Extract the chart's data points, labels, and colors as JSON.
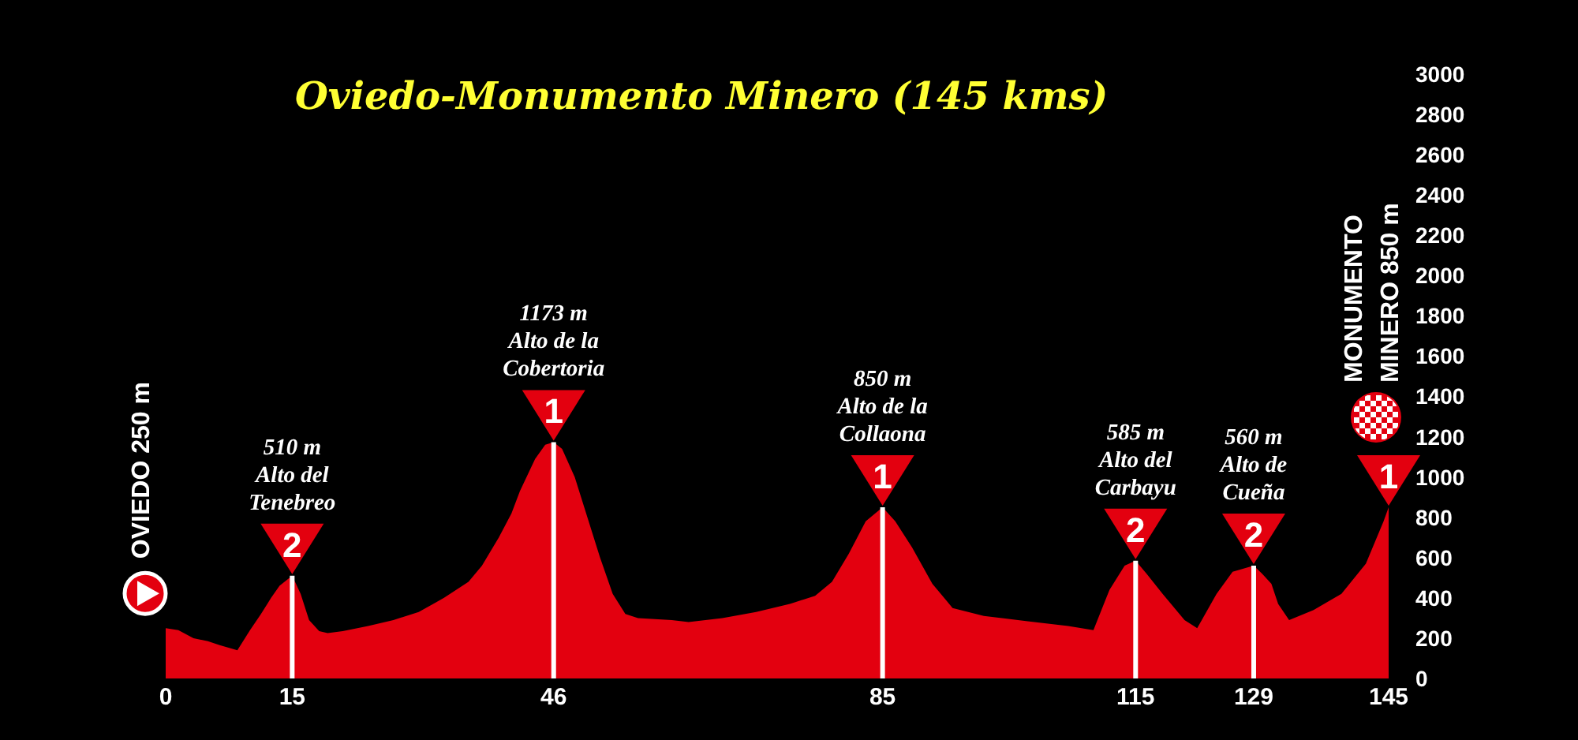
{
  "chart_data": {
    "type": "area",
    "title": "Oviedo-Monumento Minero (145 kms)",
    "x": [
      0,
      1.5,
      3.3,
      5,
      6.4,
      8.5,
      10,
      11.3,
      12.5,
      13.5,
      15,
      16,
      17,
      18.2,
      19.2,
      21,
      24,
      27,
      30,
      33,
      35.9,
      37.5,
      39.5,
      41,
      42,
      43.8,
      45,
      46,
      47,
      48.5,
      50,
      51.5,
      53,
      54.5,
      56,
      60,
      62,
      66,
      70,
      74,
      77,
      79,
      81,
      83,
      85,
      86.5,
      88.5,
      90.9,
      93.3,
      97,
      102,
      107,
      110,
      111.9,
      113.7,
      115,
      116.3,
      118.2,
      120.8,
      122.3,
      124.6,
      126.5,
      129,
      130,
      131.1,
      131.9,
      133.2,
      136.1,
      139.4,
      142.3,
      144.4,
      145
    ],
    "values": [
      250,
      240,
      200,
      185,
      165,
      140,
      240,
      320,
      400,
      460,
      510,
      420,
      290,
      235,
      225,
      235,
      260,
      290,
      330,
      400,
      480,
      560,
      700,
      820,
      930,
      1090,
      1160,
      1173,
      1140,
      1000,
      800,
      600,
      420,
      320,
      300,
      290,
      280,
      300,
      330,
      370,
      410,
      480,
      620,
      780,
      850,
      780,
      650,
      470,
      350,
      310,
      285,
      260,
      240,
      440,
      560,
      585,
      520,
      420,
      290,
      250,
      420,
      530,
      560,
      520,
      470,
      370,
      290,
      340,
      420,
      570,
      780,
      850
    ],
    "color": "#e3000f",
    "xlim": [
      0,
      145
    ],
    "xticks": [
      0,
      15,
      46,
      85,
      115,
      129,
      145
    ],
    "ylim": [
      0,
      3000
    ],
    "yticks": [
      0,
      200,
      400,
      600,
      800,
      1000,
      1200,
      1400,
      1600,
      1800,
      2000,
      2200,
      2400,
      2600,
      2800,
      3000
    ],
    "annotations": [
      "OVIEDO 250 m",
      {
        "text": "510 m\nAlto del\nTenebreo",
        "x": 15,
        "y": 510
      },
      {
        "text": "2",
        "x": 15,
        "y": 510
      },
      {
        "text": "1173 m\nAlto de la\nCobertoria",
        "x": 46,
        "y": 1173
      },
      {
        "text": "1",
        "x": 46,
        "y": 1173
      },
      {
        "text": "850 m\nAlto de la\nCollaona",
        "x": 85,
        "y": 850
      },
      {
        "text": "1",
        "x": 85,
        "y": 850
      },
      {
        "text": "585 m\nAlto del\nCarbayu",
        "x": 115,
        "y": 585
      },
      {
        "text": "2",
        "x": 115,
        "y": 585
      },
      {
        "text": "560 m\nAlto de\nCueña",
        "x": 129,
        "y": 560
      },
      {
        "text": "2",
        "x": 129,
        "y": 560
      },
      "MONUMENTO\nMINERO 850 m",
      {
        "text": "1",
        "x": 145,
        "y": 850
      }
    ]
  }
}
